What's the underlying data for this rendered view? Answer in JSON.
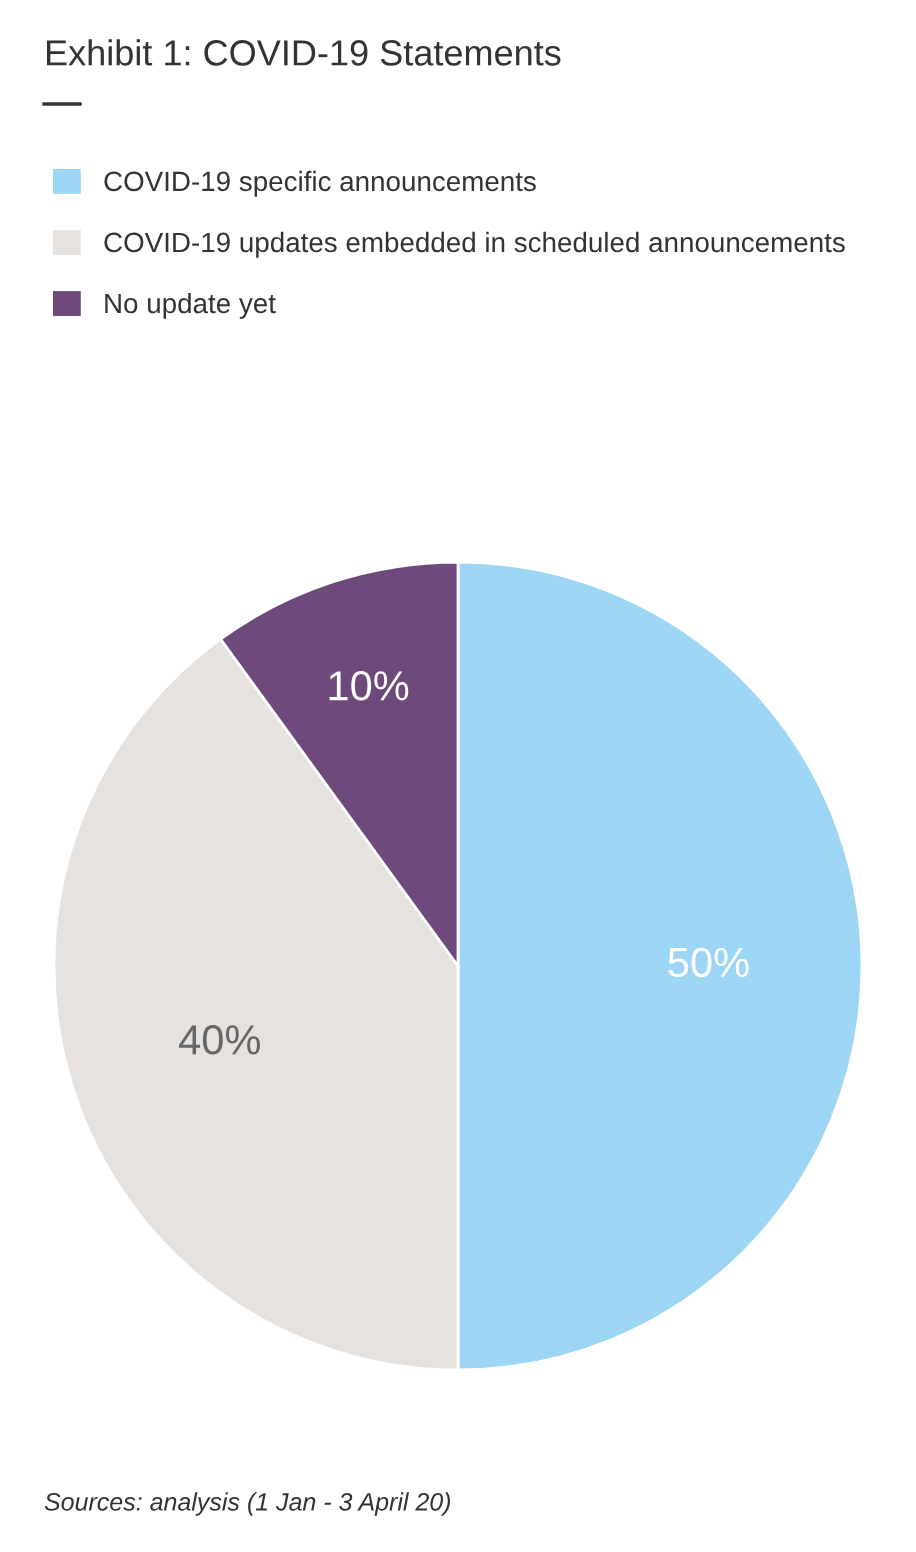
{
  "chart_data": {
    "type": "pie",
    "title": "Exhibit 1: COVID-19 Statements",
    "categories": [
      "COVID-19 specific announcements",
      "COVID-19 updates embedded in scheduled announcements",
      "No update yet"
    ],
    "values": [
      50,
      40,
      10
    ],
    "colors": [
      "#9dd5f5",
      "#e6e2df",
      "#6d4a7b"
    ],
    "value_labels": [
      "50%",
      "40%",
      "10%"
    ],
    "legend": "top",
    "annotations": [
      "Sources: analysis (1 Jan - 3 April 20)"
    ]
  }
}
